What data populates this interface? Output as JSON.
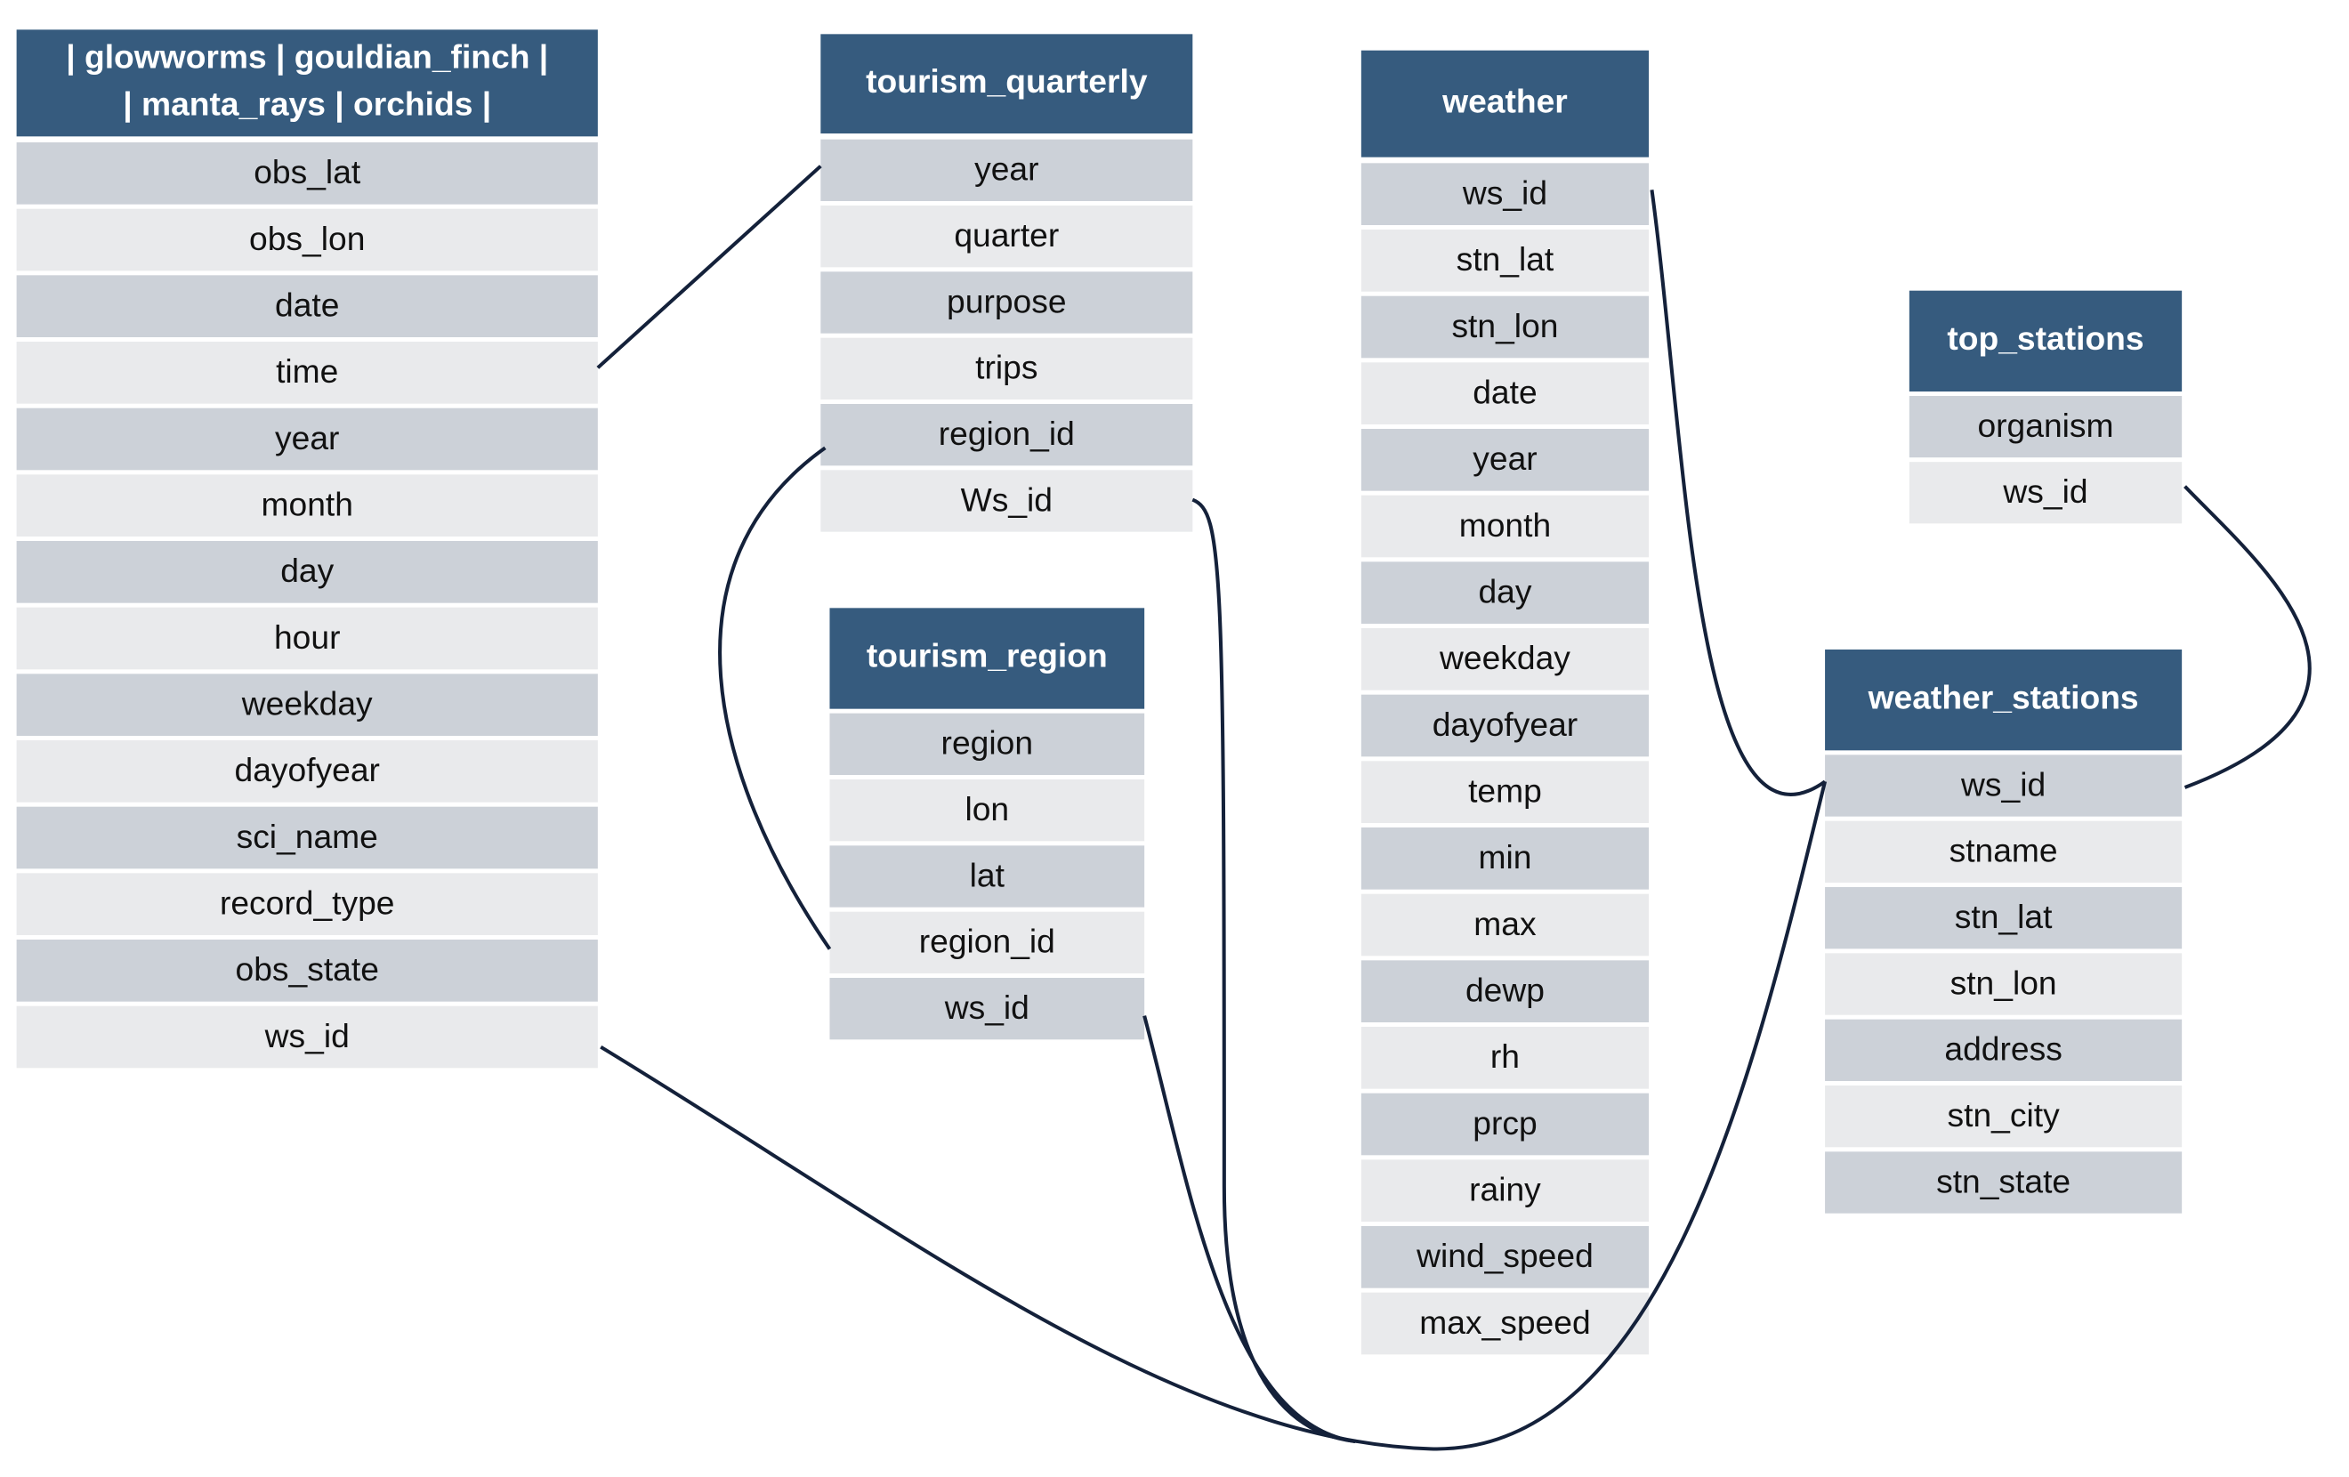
{
  "tables": [
    {
      "title": [
        "| glowworms | gouldian_finch |",
        "| manta_rays | orchids |"
      ],
      "fields": [
        "obs_lat",
        "obs_lon",
        "date",
        "time",
        "year",
        "month",
        "day",
        "hour",
        "weekday",
        "dayofyear",
        "sci_name",
        "record_type",
        "obs_state",
        "ws_id"
      ]
    },
    {
      "title": [
        "tourism_quarterly"
      ],
      "fields": [
        "year",
        "quarter",
        "purpose",
        "trips",
        "region_id",
        "Ws_id"
      ]
    },
    {
      "title": [
        "tourism_region"
      ],
      "fields": [
        "region",
        "lon",
        "lat",
        "region_id",
        "ws_id"
      ]
    },
    {
      "title": [
        "weather"
      ],
      "fields": [
        "ws_id",
        "stn_lat",
        "stn_lon",
        "date",
        "year",
        "month",
        "day",
        "weekday",
        "dayofyear",
        "temp",
        "min",
        "max",
        "dewp",
        "rh",
        "prcp",
        "rainy",
        "wind_speed",
        "max_speed"
      ]
    },
    {
      "title": [
        "top_stations"
      ],
      "fields": [
        "organism",
        "ws_id"
      ]
    },
    {
      "title": [
        "weather_stations"
      ],
      "fields": [
        "ws_id",
        "stname",
        "stn_lat",
        "stn_lon",
        "address",
        "stn_city",
        "stn_state"
      ]
    }
  ]
}
